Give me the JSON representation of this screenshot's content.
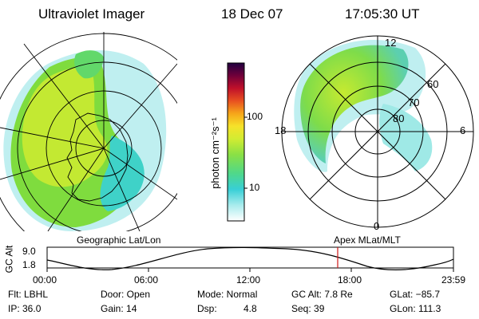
{
  "header": {
    "title": "Ultraviolet Imager",
    "date": "18 Dec 07",
    "time": "17:05:30 UT"
  },
  "colorbar": {
    "unit": "photon cm⁻²s⁻¹",
    "ticks": [
      "100",
      "10"
    ],
    "scale": "log",
    "colors": [
      "#ffffff",
      "#a8eced",
      "#38cfd6",
      "#5fdc7c",
      "#b6e63a",
      "#eef82c",
      "#f6a61a",
      "#e0382b",
      "#9a0030",
      "#200040"
    ]
  },
  "geo_panel": {
    "label": "Geographic Lat/Lon"
  },
  "polar_panel": {
    "label": "Apex MLat/MLT",
    "mlt_labels": {
      "top": "12",
      "right": "6",
      "bottom": "0",
      "left": "18"
    },
    "lat_labels": [
      "60",
      "70",
      "80"
    ]
  },
  "altitude_plot": {
    "ylabel": "GC Alt",
    "yticks": [
      "9.0",
      "1.8"
    ],
    "xticks": [
      "00:00",
      "06:00",
      "12:00",
      "18:00",
      "23:59"
    ],
    "marker_time": "17:05",
    "marker_color": "#d01818"
  },
  "info": {
    "flt": "Flt: LBHL",
    "ip": "IP: 36.0",
    "door": "Door: Open",
    "gain": "Gain: 14",
    "mode": "Mode: Normal",
    "dsp_label": "Dsp:",
    "dsp_value": "4.8",
    "gc_alt": "GC Alt: 7.8 Re",
    "seq": "Seq: 39",
    "glat": "GLat: −85.7",
    "glon": "GLon: 111.3"
  }
}
